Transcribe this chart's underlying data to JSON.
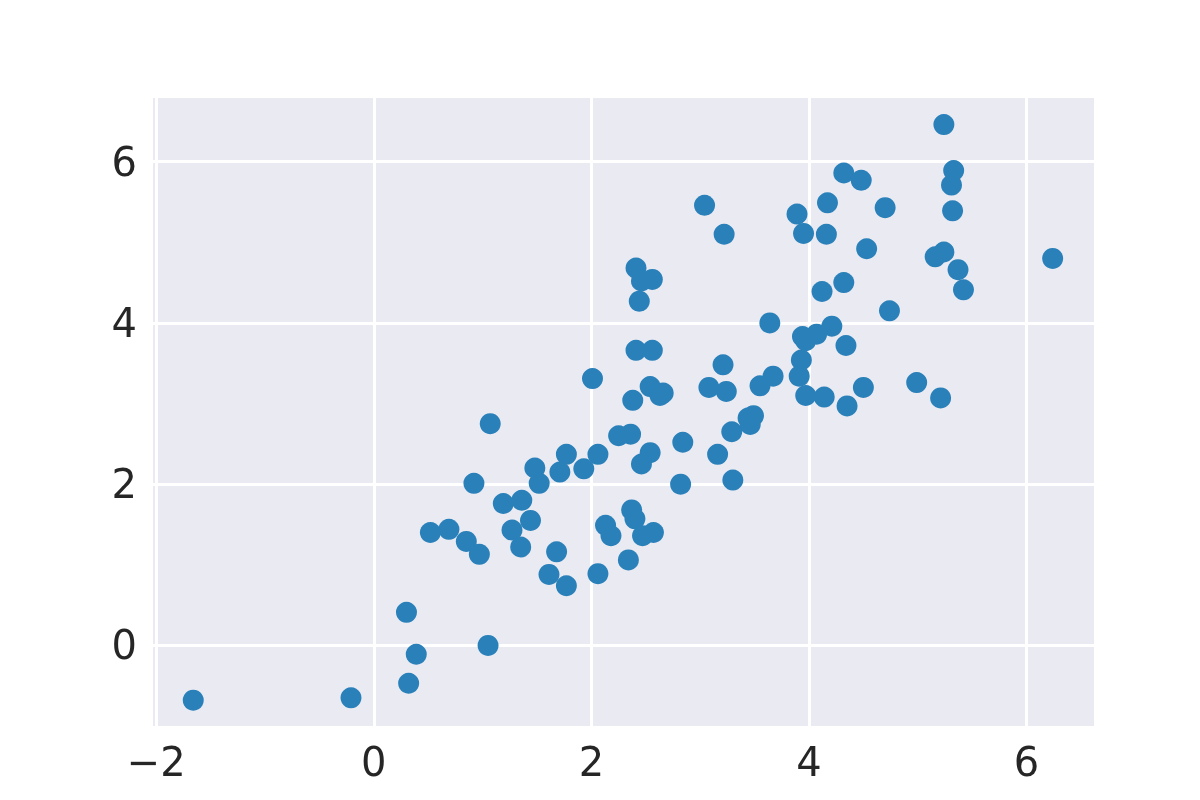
{
  "chart_data": {
    "type": "scatter",
    "color": "#2a81ba",
    "marker": "circle",
    "grid": true,
    "xlim": [
      -2.03,
      6.62
    ],
    "ylim": [
      -1.0,
      6.79
    ],
    "xticks": [
      -2,
      0,
      2,
      4,
      6
    ],
    "yticks": [
      0,
      2,
      4,
      6
    ],
    "x": [
      -1.66,
      -0.21,
      0.32,
      0.39,
      0.3,
      1.05,
      0.52,
      0.69,
      0.85,
      0.97,
      0.92,
      1.07,
      1.19,
      1.27,
      1.35,
      1.36,
      1.44,
      1.48,
      1.52,
      1.61,
      1.68,
      1.77,
      1.71,
      1.77,
      1.93,
      2.01,
      2.06,
      2.06,
      2.13,
      2.18,
      2.25,
      2.34,
      2.36,
      2.37,
      2.38,
      2.4,
      2.41,
      2.41,
      2.46,
      2.44,
      2.47,
      2.46,
      2.54,
      2.54,
      2.56,
      2.57,
      2.56,
      2.63,
      2.66,
      2.84,
      2.82,
      3.04,
      3.08,
      3.16,
      3.21,
      3.22,
      3.24,
      3.29,
      3.3,
      3.44,
      3.46,
      3.49,
      3.55,
      3.64,
      3.67,
      3.89,
      3.91,
      3.93,
      3.94,
      3.95,
      3.97,
      3.97,
      4.07,
      4.12,
      4.14,
      4.16,
      4.17,
      4.21,
      4.32,
      4.32,
      4.34,
      4.35,
      4.48,
      4.5,
      4.53,
      4.7,
      4.74,
      4.99,
      5.16,
      5.21,
      5.24,
      5.24,
      5.31,
      5.32,
      5.33,
      5.37,
      5.42,
      6.24
    ],
    "values": [
      -0.68,
      -0.65,
      -0.47,
      -0.11,
      0.41,
      0.0,
      1.4,
      1.44,
      1.29,
      1.13,
      2.01,
      2.75,
      1.76,
      1.43,
      1.22,
      1.8,
      1.55,
      2.2,
      2.01,
      0.88,
      1.16,
      0.74,
      2.15,
      2.37,
      2.19,
      3.31,
      2.37,
      0.89,
      1.49,
      1.36,
      2.6,
      1.06,
      2.62,
      1.68,
      3.04,
      1.57,
      3.66,
      4.68,
      4.52,
      4.27,
      1.36,
      2.25,
      2.39,
      3.21,
      4.54,
      1.4,
      3.66,
      3.1,
      3.13,
      2.52,
      2.0,
      5.46,
      3.2,
      2.37,
      3.48,
      5.1,
      3.15,
      2.65,
      2.05,
      2.82,
      2.74,
      2.85,
      3.22,
      4.0,
      3.34,
      5.35,
      3.34,
      3.54,
      3.83,
      5.11,
      3.1,
      3.78,
      3.86,
      4.39,
      3.08,
      5.1,
      5.49,
      3.96,
      4.5,
      5.86,
      3.72,
      2.97,
      5.77,
      3.2,
      4.92,
      5.43,
      4.15,
      3.26,
      4.82,
      3.07,
      6.46,
      4.88,
      5.71,
      5.39,
      5.89,
      4.66,
      4.41,
      4.8
    ]
  }
}
